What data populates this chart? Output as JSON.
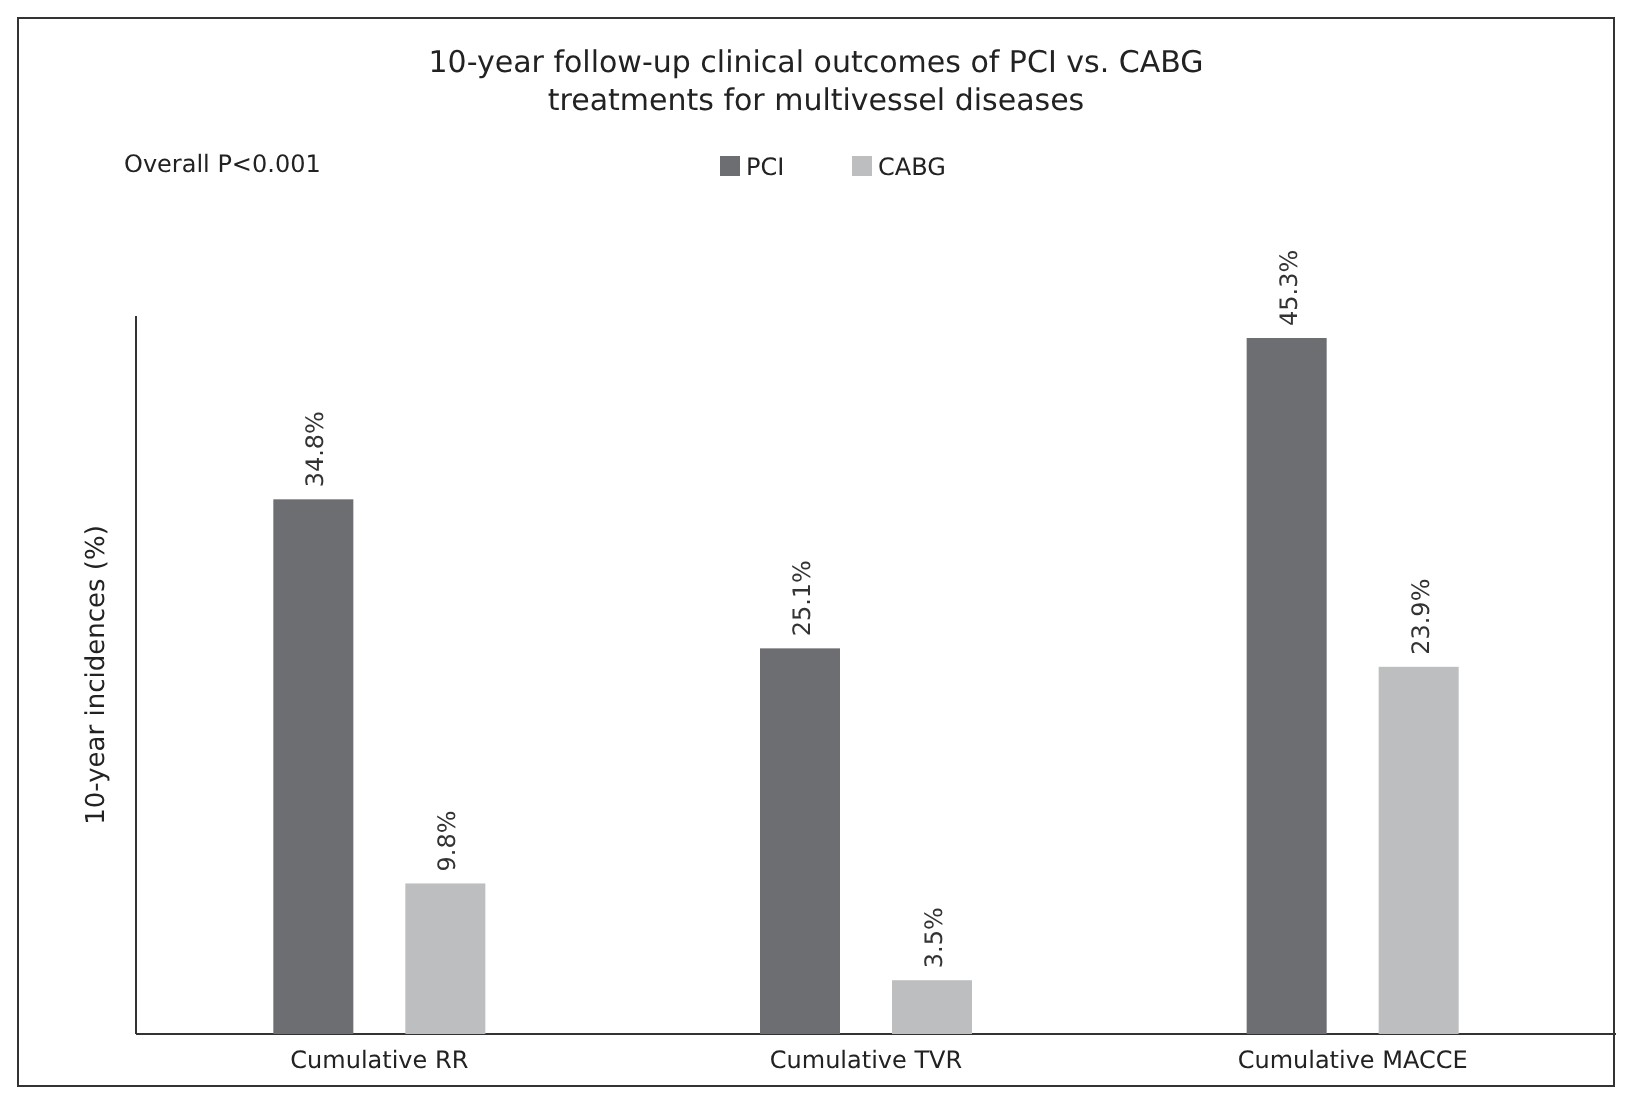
{
  "chart_data": {
    "type": "bar",
    "title": "10-year follow-up clinical outcomes of PCI vs. CABG treatments for multivessel diseases",
    "ylabel": "10-year incidences (%)",
    "annotations": [
      "Overall P<0.001"
    ],
    "categories": [
      "Cumulative RR",
      "Cumulative TVR",
      "Cumulative MACCE"
    ],
    "series": [
      {
        "name": "PCI",
        "color": "#6d6e71",
        "values": [
          34.8,
          25.1,
          45.3
        ],
        "value_labels": [
          "34.8%",
          "25.1%",
          "45.3%"
        ]
      },
      {
        "name": "CABG",
        "color": "#bcbec0",
        "values": [
          9.8,
          3.5,
          23.9
        ],
        "value_labels": [
          "9.8%",
          "3.5%",
          "23.9%"
        ]
      }
    ],
    "legend": "top"
  }
}
